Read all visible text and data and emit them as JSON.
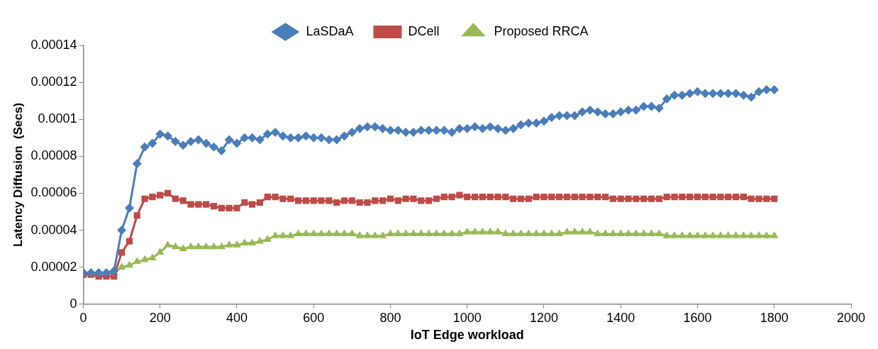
{
  "chart_data": {
    "type": "line",
    "xlabel": "IoT Edge workload",
    "ylabel": "Latency Diffusion  (Secs)",
    "x": [
      0,
      20,
      40,
      60,
      80,
      100,
      120,
      140,
      160,
      180,
      200,
      220,
      240,
      260,
      280,
      300,
      320,
      340,
      360,
      380,
      400,
      420,
      440,
      460,
      480,
      500,
      520,
      540,
      560,
      580,
      600,
      620,
      640,
      660,
      680,
      700,
      720,
      740,
      760,
      780,
      800,
      820,
      840,
      860,
      880,
      900,
      920,
      940,
      960,
      980,
      1000,
      1020,
      1040,
      1060,
      1080,
      1100,
      1120,
      1140,
      1160,
      1180,
      1200,
      1220,
      1240,
      1260,
      1280,
      1300,
      1320,
      1340,
      1360,
      1380,
      1400,
      1420,
      1440,
      1460,
      1480,
      1500,
      1520,
      1540,
      1560,
      1580,
      1600,
      1620,
      1640,
      1660,
      1680,
      1700,
      1720,
      1740,
      1760,
      1780,
      1800
    ],
    "series": [
      {
        "name": "LaSDaA",
        "color": "#4a7ebb",
        "marker": "diamond",
        "values": [
          1.7e-05,
          1.7e-05,
          1.7e-05,
          1.7e-05,
          1.8e-05,
          4e-05,
          5.2e-05,
          7.6e-05,
          8.5e-05,
          8.7e-05,
          9.2e-05,
          9.1e-05,
          8.8e-05,
          8.6e-05,
          8.8e-05,
          8.9e-05,
          8.7e-05,
          8.5e-05,
          8.3e-05,
          8.9e-05,
          8.7e-05,
          9e-05,
          9e-05,
          8.9e-05,
          9.2e-05,
          9.3e-05,
          9.1e-05,
          9e-05,
          9e-05,
          9.1e-05,
          9e-05,
          9e-05,
          8.9e-05,
          8.9e-05,
          9.1e-05,
          9.3e-05,
          9.5e-05,
          9.6e-05,
          9.6e-05,
          9.5e-05,
          9.4e-05,
          9.4e-05,
          9.3e-05,
          9.3e-05,
          9.4e-05,
          9.4e-05,
          9.4e-05,
          9.4e-05,
          9.3e-05,
          9.5e-05,
          9.5e-05,
          9.6e-05,
          9.5e-05,
          9.6e-05,
          9.5e-05,
          9.4e-05,
          9.5e-05,
          9.7e-05,
          9.8e-05,
          9.8e-05,
          9.9e-05,
          0.000101,
          0.000102,
          0.000102,
          0.000102,
          0.000104,
          0.000105,
          0.000104,
          0.000103,
          0.000103,
          0.000104,
          0.000105,
          0.000105,
          0.000107,
          0.000107,
          0.000106,
          0.000111,
          0.000113,
          0.000113,
          0.000114,
          0.000115,
          0.000114,
          0.000114,
          0.000114,
          0.000114,
          0.000114,
          0.000113,
          0.000112,
          0.000115,
          0.000116,
          0.000116
        ]
      },
      {
        "name": "DCell",
        "color": "#be4b48",
        "marker": "square",
        "values": [
          1.6e-05,
          1.6e-05,
          1.5e-05,
          1.5e-05,
          1.5e-05,
          2.8e-05,
          3.4e-05,
          4.8e-05,
          5.7e-05,
          5.8e-05,
          5.9e-05,
          6e-05,
          5.7e-05,
          5.6e-05,
          5.4e-05,
          5.4e-05,
          5.4e-05,
          5.3e-05,
          5.2e-05,
          5.2e-05,
          5.2e-05,
          5.5e-05,
          5.4e-05,
          5.5e-05,
          5.8e-05,
          5.8e-05,
          5.7e-05,
          5.7e-05,
          5.6e-05,
          5.6e-05,
          5.6e-05,
          5.6e-05,
          5.6e-05,
          5.5e-05,
          5.6e-05,
          5.6e-05,
          5.5e-05,
          5.5e-05,
          5.6e-05,
          5.6e-05,
          5.7e-05,
          5.6e-05,
          5.7e-05,
          5.7e-05,
          5.6e-05,
          5.6e-05,
          5.7e-05,
          5.8e-05,
          5.8e-05,
          5.9e-05,
          5.8e-05,
          5.8e-05,
          5.8e-05,
          5.8e-05,
          5.8e-05,
          5.8e-05,
          5.7e-05,
          5.7e-05,
          5.7e-05,
          5.8e-05,
          5.8e-05,
          5.8e-05,
          5.8e-05,
          5.8e-05,
          5.8e-05,
          5.8e-05,
          5.8e-05,
          5.8e-05,
          5.8e-05,
          5.7e-05,
          5.7e-05,
          5.7e-05,
          5.7e-05,
          5.7e-05,
          5.7e-05,
          5.7e-05,
          5.8e-05,
          5.8e-05,
          5.8e-05,
          5.8e-05,
          5.8e-05,
          5.8e-05,
          5.8e-05,
          5.8e-05,
          5.8e-05,
          5.8e-05,
          5.8e-05,
          5.7e-05,
          5.7e-05,
          5.7e-05,
          5.7e-05
        ]
      },
      {
        "name": "Proposed RRCA",
        "color": "#98b954",
        "marker": "triangle",
        "values": [
          1.6e-05,
          1.6e-05,
          1.6e-05,
          1.6e-05,
          1.7e-05,
          2e-05,
          2.1e-05,
          2.3e-05,
          2.4e-05,
          2.5e-05,
          2.8e-05,
          3.2e-05,
          3.1e-05,
          3e-05,
          3.1e-05,
          3.1e-05,
          3.1e-05,
          3.1e-05,
          3.1e-05,
          3.2e-05,
          3.2e-05,
          3.3e-05,
          3.3e-05,
          3.4e-05,
          3.5e-05,
          3.7e-05,
          3.7e-05,
          3.7e-05,
          3.8e-05,
          3.8e-05,
          3.8e-05,
          3.8e-05,
          3.8e-05,
          3.8e-05,
          3.8e-05,
          3.8e-05,
          3.7e-05,
          3.7e-05,
          3.7e-05,
          3.7e-05,
          3.8e-05,
          3.8e-05,
          3.8e-05,
          3.8e-05,
          3.8e-05,
          3.8e-05,
          3.8e-05,
          3.8e-05,
          3.8e-05,
          3.8e-05,
          3.9e-05,
          3.9e-05,
          3.9e-05,
          3.9e-05,
          3.9e-05,
          3.8e-05,
          3.8e-05,
          3.8e-05,
          3.8e-05,
          3.8e-05,
          3.8e-05,
          3.8e-05,
          3.8e-05,
          3.9e-05,
          3.9e-05,
          3.9e-05,
          3.9e-05,
          3.8e-05,
          3.8e-05,
          3.8e-05,
          3.8e-05,
          3.8e-05,
          3.8e-05,
          3.8e-05,
          3.8e-05,
          3.8e-05,
          3.7e-05,
          3.7e-05,
          3.7e-05,
          3.7e-05,
          3.7e-05,
          3.7e-05,
          3.7e-05,
          3.7e-05,
          3.7e-05,
          3.7e-05,
          3.7e-05,
          3.7e-05,
          3.7e-05,
          3.7e-05,
          3.7e-05
        ]
      }
    ],
    "xlim": [
      0,
      2000
    ],
    "xticks": [
      0,
      200,
      400,
      600,
      800,
      1000,
      1200,
      1400,
      1600,
      1800,
      2000
    ],
    "ylim": [
      0,
      0.00014
    ],
    "yticks": [
      0,
      {
        "value": 2e-05,
        "label": "0.00002"
      },
      {
        "value": 4e-05,
        "label": "0.00004"
      },
      {
        "value": 6e-05,
        "label": "0.00006"
      },
      {
        "value": 8e-05,
        "label": "0.00008"
      },
      0.0001,
      0.00012,
      0.00014
    ],
    "legend": "top"
  }
}
